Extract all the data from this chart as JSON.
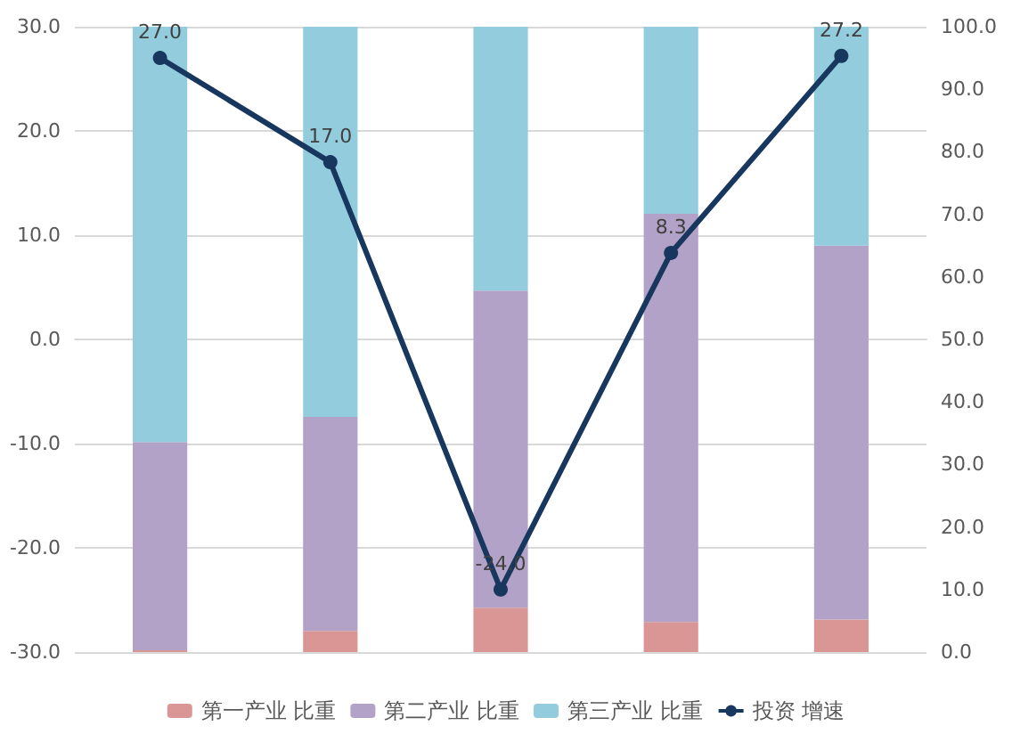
{
  "chart_data": {
    "type": "bar",
    "stacked": true,
    "categories": [
      null,
      null,
      null,
      null,
      null
    ],
    "series": [
      {
        "name": "第一产业 比重",
        "color": "#d99694",
        "axis": "y2",
        "values": [
          0.3,
          3.4,
          7.1,
          4.8,
          5.2
        ]
      },
      {
        "name": "第二产业 比重",
        "color": "#b3a2c7",
        "axis": "y2",
        "values": [
          33.3,
          34.2,
          50.7,
          65.3,
          59.8
        ]
      },
      {
        "name": "第三产业 比重",
        "color": "#93cddd",
        "axis": "y2",
        "values": [
          66.4,
          62.4,
          42.2,
          29.9,
          35.0
        ]
      },
      {
        "name": "投资 增速",
        "color": "#17375e",
        "type": "line",
        "values": [
          27.0,
          17.0,
          -24.0,
          8.3,
          27.2
        ],
        "value_labels": [
          "27.0",
          "17.0",
          "-24.0",
          "8.3",
          "27.2"
        ]
      }
    ],
    "ylim": [
      -30,
      30
    ],
    "yticks": [
      {
        "value": -30,
        "label": "-30.0"
      },
      {
        "value": -20,
        "label": "-20.0"
      },
      {
        "value": -10,
        "label": "-10.0"
      },
      {
        "value": 0,
        "label": "0.0"
      },
      {
        "value": 10,
        "label": "10.0"
      },
      {
        "value": 20,
        "label": "20.0"
      },
      {
        "value": 30,
        "label": "30.0"
      }
    ],
    "y2lim": [
      0,
      100
    ],
    "y2ticks": [
      {
        "value": 0,
        "label": "0.0"
      },
      {
        "value": 10,
        "label": "10.0"
      },
      {
        "value": 20,
        "label": "20.0"
      },
      {
        "value": 30,
        "label": "30.0"
      },
      {
        "value": 40,
        "label": "40.0"
      },
      {
        "value": 50,
        "label": "50.0"
      },
      {
        "value": 60,
        "label": "60.0"
      },
      {
        "value": 70,
        "label": "70.0"
      },
      {
        "value": 80,
        "label": "80.0"
      },
      {
        "value": 90,
        "label": "90.0"
      },
      {
        "value": 100,
        "label": "100.0"
      }
    ],
    "grid": "y",
    "legend": "bottom",
    "marker": "circle",
    "line_style": "solid"
  }
}
